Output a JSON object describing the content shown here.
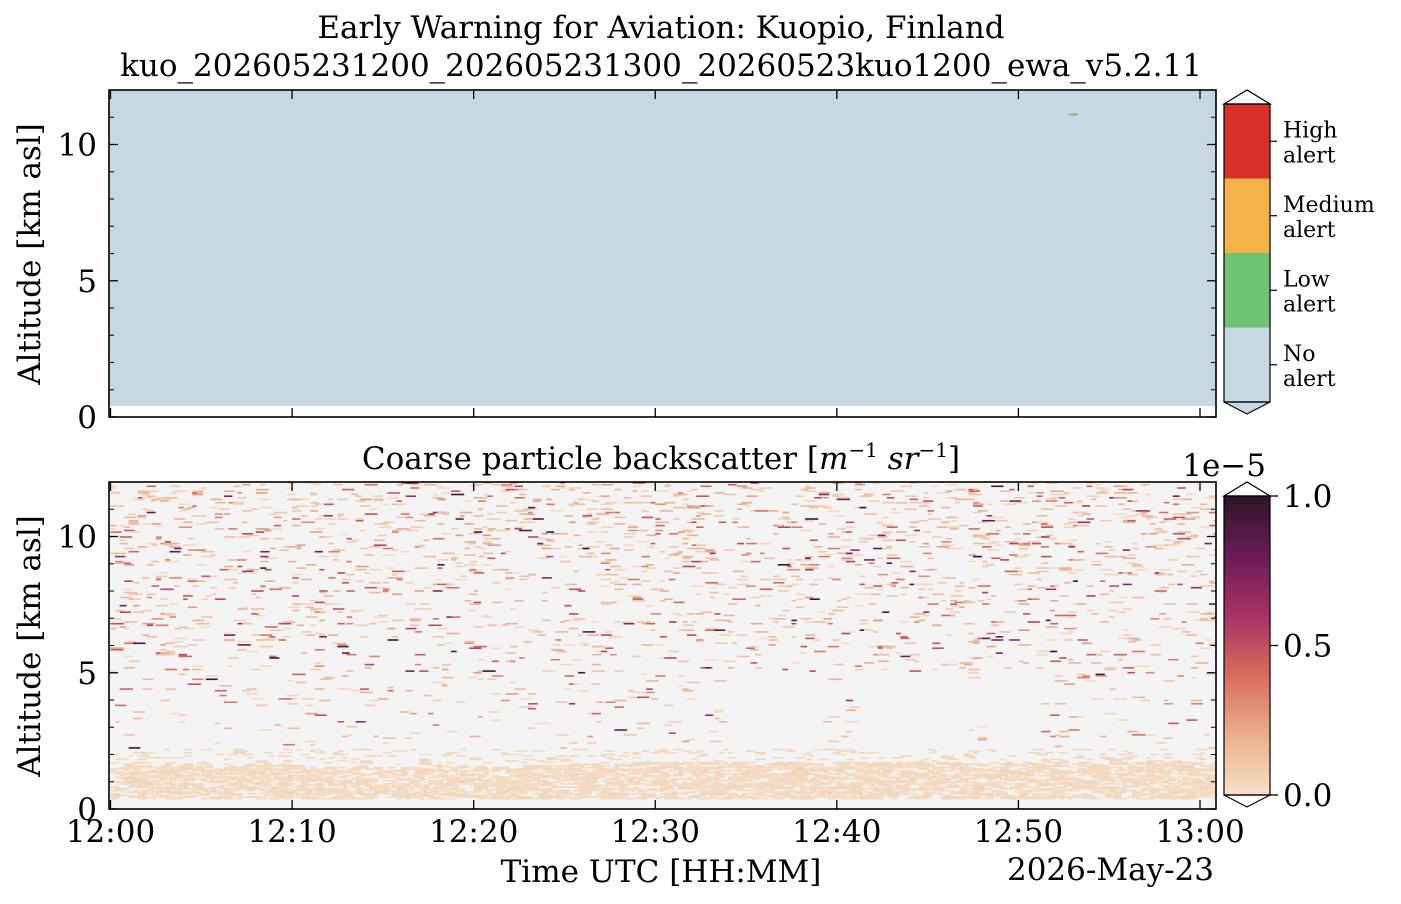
{
  "figure": {
    "title_line1": "Early Warning for Aviation: Kuopio, Finland",
    "title_line2": "kuo_202605231200_202605231300_20260523kuo1200_ewa_v5.2.11",
    "date_label": "2026-May-23"
  },
  "chart_data": [
    {
      "type": "heatmap",
      "name": "alert-panel",
      "ylabel": "Altitude [km asl]",
      "xlabel": "",
      "ylim": [
        0,
        12
      ],
      "xlim": [
        "12:00",
        "13:00"
      ],
      "yticks": [
        0,
        5,
        10
      ],
      "yticks_minor_step": 1,
      "xtick_minutes": [
        0,
        10,
        20,
        30,
        40,
        50,
        60
      ],
      "data_altitude_range_km": [
        0.4,
        12
      ],
      "dominant_class": "No alert",
      "alert_pixels": [
        {
          "time": "12:53",
          "altitude_km": 11.1,
          "class": "Low alert"
        }
      ],
      "colorbar": {
        "classes": [
          {
            "label_line1": "No",
            "label_line2": "alert",
            "color": "#c5d8e4"
          },
          {
            "label_line1": "Low",
            "label_line2": "alert",
            "color": "#6fc473"
          },
          {
            "label_line1": "Medium",
            "label_line2": "alert",
            "color": "#f5b24a"
          },
          {
            "label_line1": "High",
            "label_line2": "alert",
            "color": "#d73027"
          }
        ],
        "extend": "both"
      }
    },
    {
      "type": "heatmap",
      "name": "backscatter-panel",
      "title": "Coarse particle backscatter [m⁻¹ sr⁻¹]",
      "title_main": "Coarse particle backscatter ",
      "title_unit_m": "m",
      "title_unit_m_exp": "−1",
      "title_unit_sr": " sr",
      "title_unit_sr_exp": "−1",
      "xlabel": "Time UTC [HH:MM]",
      "ylabel": "Altitude [km asl]",
      "ylim": [
        0,
        12
      ],
      "xlim": [
        "12:00",
        "13:00"
      ],
      "yticks": [
        0,
        5,
        10
      ],
      "xticks": [
        "12:00",
        "12:10",
        "12:20",
        "12:30",
        "12:40",
        "12:50",
        "13:00"
      ],
      "xtick_minutes": [
        0,
        10,
        20,
        30,
        40,
        50,
        60
      ],
      "background_color": "#f4f4f4",
      "boundary_layer_top_km": [
        {
          "time": "12:00",
          "altitude_km": 1.6
        },
        {
          "time": "12:20",
          "altitude_km": 1.5
        },
        {
          "time": "12:30",
          "altitude_km": 1.7
        },
        {
          "time": "12:40",
          "altitude_km": 1.7
        },
        {
          "time": "12:50",
          "altitude_km": 1.7
        },
        {
          "time": "13:00",
          "altitude_km": 1.7
        }
      ],
      "clear_gap_regions": [
        {
          "start": "12:04",
          "end": "12:05",
          "bottom_km": 1.6,
          "top_km": 4.5
        },
        {
          "start": "12:34",
          "end": "12:39",
          "bottom_km": 1.8,
          "top_km": 5.0
        },
        {
          "start": "12:41",
          "end": "12:47",
          "bottom_km": 1.7,
          "top_km": 5.0
        },
        {
          "start": "12:48",
          "end": "12:51",
          "bottom_km": 1.7,
          "top_km": 5.0
        }
      ],
      "value_range": [
        0,
        1e-05
      ],
      "colorbar": {
        "min": 0.0,
        "max": 1.0,
        "ticks": [
          "0.0",
          "0.5",
          "1.0"
        ],
        "offset_label": "1e−5",
        "extend": "both",
        "stops": [
          "#f6e0c8",
          "#ebaf8b",
          "#d96c5c",
          "#a83165",
          "#6a1b57",
          "#2c1526"
        ]
      }
    }
  ]
}
